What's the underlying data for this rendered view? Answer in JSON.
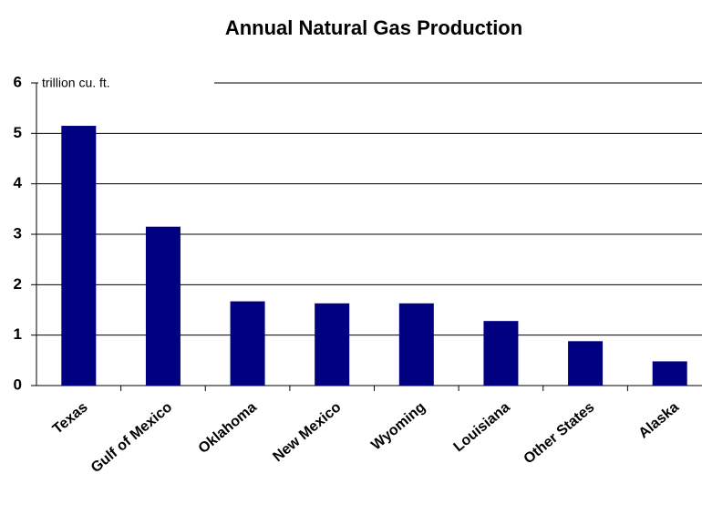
{
  "chart_data": {
    "type": "bar",
    "title": "Annual Natural Gas Production",
    "annotation": "trillion cu. ft.",
    "categories": [
      "Texas",
      "Gulf of Mexico",
      "Oklahoma",
      "New Mexico",
      "Wyoming",
      "Louisiana",
      "Other States",
      "Alaska"
    ],
    "values": [
      5.15,
      3.15,
      1.67,
      1.63,
      1.63,
      1.28,
      0.88,
      0.48
    ],
    "color": "#000080",
    "ylim": [
      0,
      6
    ],
    "yticks": [
      0,
      1,
      2,
      3,
      4,
      5,
      6
    ],
    "grid": true
  }
}
